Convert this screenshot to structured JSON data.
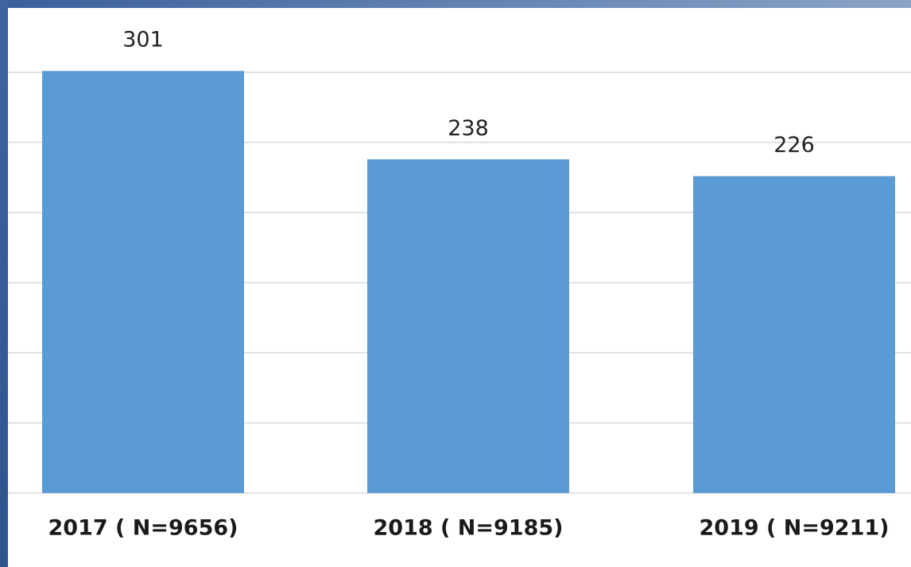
{
  "chart_data": {
    "type": "bar",
    "categories": [
      "2017 ( N=9656)",
      "2018 ( N=9185)",
      "2019 ( N=9211)"
    ],
    "values": [
      301,
      238,
      226
    ],
    "color": "#5b9bd5",
    "ylim": [
      0,
      300
    ],
    "yticks": [
      0,
      50,
      100,
      150,
      200,
      250,
      300
    ],
    "grid": true
  }
}
